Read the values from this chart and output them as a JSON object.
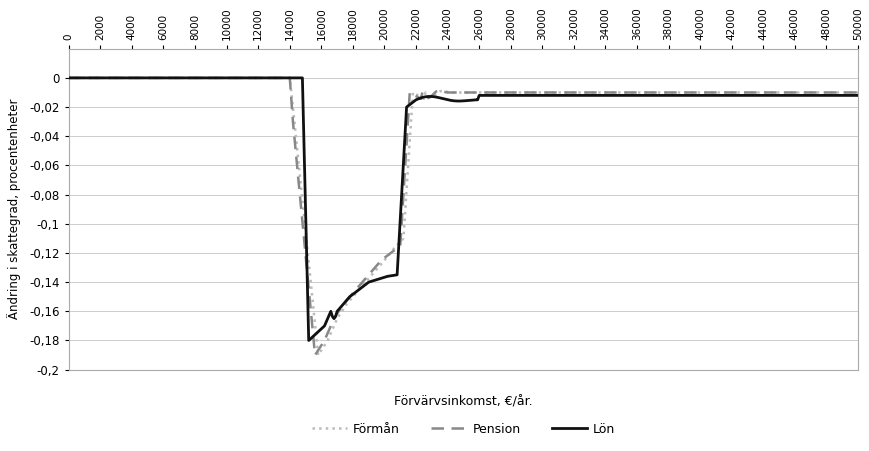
{
  "title": "",
  "xlabel": "Förvärvsinkomst, €/år.",
  "ylabel": "Ändring i skattegrad, procentenheter",
  "xlim": [
    0,
    50000
  ],
  "ylim": [
    -0.2,
    0.02
  ],
  "xticks": [
    0,
    2000,
    4000,
    6000,
    8000,
    10000,
    12000,
    14000,
    16000,
    18000,
    20000,
    22000,
    24000,
    26000,
    28000,
    30000,
    32000,
    34000,
    36000,
    38000,
    40000,
    42000,
    44000,
    46000,
    48000,
    50000
  ],
  "yticks": [
    0,
    -0.02,
    -0.04,
    -0.06,
    -0.08,
    -0.1,
    -0.12,
    -0.14,
    -0.16,
    -0.18,
    -0.2
  ],
  "ytick_labels": [
    "0",
    "-0,02",
    "-0,04",
    "-0,06",
    "-0,08",
    "-0,1",
    "-0,12",
    "-0,14",
    "-0,16",
    "-0,18",
    "-0,2"
  ],
  "lon_color": "#111111",
  "pension_color": "#888888",
  "forman_color": "#bbbbbb",
  "legend_labels": [
    "Lön",
    "Pension",
    "Förmån"
  ],
  "background_color": "#ffffff",
  "grid_color": "#cccccc"
}
